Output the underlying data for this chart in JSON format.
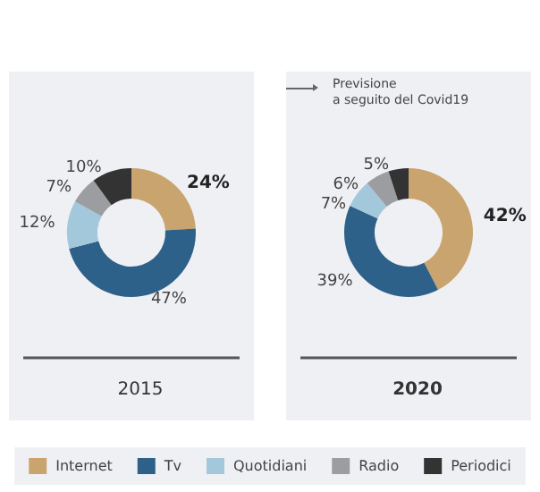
{
  "chart_data": {
    "type": "donut",
    "categories": [
      "Internet",
      "Tv",
      "Quotidiani",
      "Radio",
      "Periodici"
    ],
    "colors": [
      "#c9a46e",
      "#2e6189",
      "#a3c7db",
      "#9c9da1",
      "#333333"
    ],
    "series": [
      {
        "name": "2015",
        "values": [
          24,
          47,
          12,
          7,
          10
        ],
        "value_labels": [
          "24%",
          "47%",
          "12%",
          "7%",
          "10%"
        ]
      },
      {
        "name": "2020",
        "values": [
          42,
          39,
          7,
          6,
          5
        ],
        "value_labels": [
          "42%",
          "39%",
          "7%",
          "6%",
          "5%"
        ]
      }
    ],
    "legend": "bottom",
    "annotations": [
      "Previsione\na seguito del Covid19"
    ]
  }
}
